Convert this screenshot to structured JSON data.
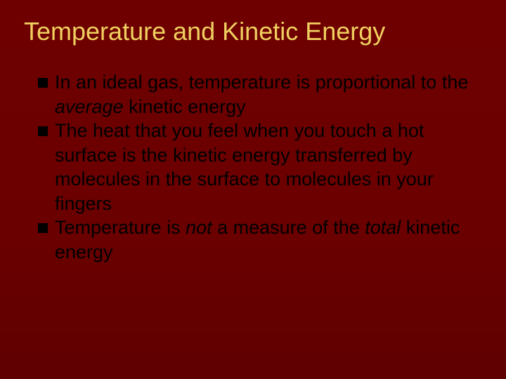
{
  "slide": {
    "background_color": "#6b0000",
    "title": {
      "text": "Temperature and Kinetic Energy",
      "color": "#f0d060",
      "fontsize": 36,
      "fontweight": 400
    },
    "bullet": {
      "marker_color": "#000000",
      "marker_size": 14,
      "text_color": "#000000",
      "text_fontsize": 27
    },
    "items": [
      {
        "pre": "In an ideal gas, temperature is proportional to the ",
        "italic": "average",
        "post": " kinetic energy"
      },
      {
        "pre": "The heat that you feel when you touch a hot surface is the kinetic energy transferred by molecules in the surface to molecules in your fingers",
        "italic": "",
        "post": ""
      },
      {
        "pre": "Temperature is ",
        "italic": "not",
        "mid": " a measure of the ",
        "italic2": "total",
        "post": " kinetic energy"
      }
    ]
  }
}
